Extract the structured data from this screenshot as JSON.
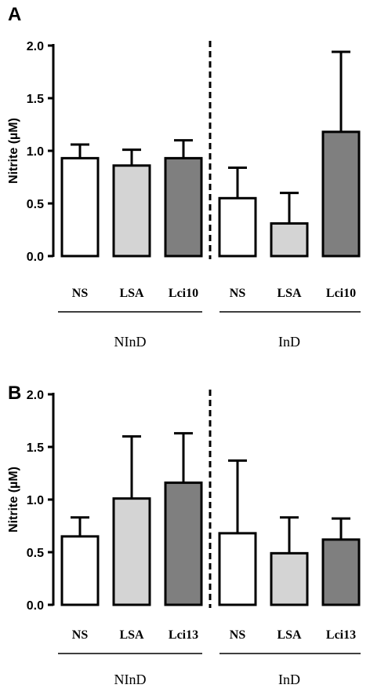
{
  "chart_data": [
    {
      "type": "bar",
      "panel": "A",
      "ylabel": "Nitrite (µM)",
      "ylim": [
        0,
        2.0
      ],
      "yticks": [
        "0.0",
        "0.5",
        "1.0",
        "1.5",
        "2.0"
      ],
      "categories": [
        "NS",
        "LSA",
        "Lci10",
        "NS",
        "LSA",
        "Lci10"
      ],
      "groups": [
        "NInD",
        "InD"
      ],
      "values": [
        0.93,
        0.86,
        0.93,
        0.55,
        0.31,
        1.18
      ],
      "errors": [
        0.13,
        0.15,
        0.17,
        0.29,
        0.29,
        0.76
      ],
      "fills": [
        "#ffffff",
        "#d4d4d4",
        "#7f7f7f",
        "#ffffff",
        "#d4d4d4",
        "#7f7f7f"
      ]
    },
    {
      "type": "bar",
      "panel": "B",
      "ylabel": "Nitrite (µM)",
      "ylim": [
        0,
        2.0
      ],
      "yticks": [
        "0.0",
        "0.5",
        "1.0",
        "1.5",
        "2.0"
      ],
      "categories": [
        "NS",
        "LSA",
        "Lci13",
        "NS",
        "LSA",
        "Lci13"
      ],
      "groups": [
        "NInD",
        "InD"
      ],
      "values": [
        0.65,
        1.01,
        1.16,
        0.68,
        0.49,
        0.62
      ],
      "errors": [
        0.18,
        0.59,
        0.47,
        0.69,
        0.34,
        0.2
      ],
      "fills": [
        "#ffffff",
        "#d4d4d4",
        "#7f7f7f",
        "#ffffff",
        "#d4d4d4",
        "#7f7f7f"
      ]
    }
  ]
}
